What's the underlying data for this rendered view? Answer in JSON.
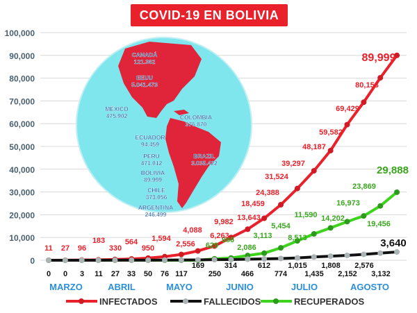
{
  "chart_data": {
    "type": "line",
    "title": "COVID-19  EN  BOLIVIA",
    "ylim": [
      0,
      100000
    ],
    "yticks": [
      "0",
      "10,000",
      "20,000",
      "30,000",
      "40,000",
      "50,000",
      "60,000",
      "70,000",
      "80,000",
      "90,000",
      "100,000"
    ],
    "months": [
      "MARZO",
      "ABRIL",
      "MAYO",
      "JUNIO",
      "JULIO",
      "AGOSTO"
    ],
    "series": [
      {
        "name": "INFECTADOS",
        "color": "#e8212b",
        "values": [
          11,
          27,
          96,
          183,
          330,
          564,
          950,
          1594,
          2556,
          4088,
          6263,
          9982,
          13643,
          18459,
          24388,
          31524,
          39297,
          48187,
          59582,
          69429,
          80153,
          89999
        ],
        "labels": [
          "11",
          "27",
          "96",
          "183",
          "330",
          "564",
          "950",
          "1,594",
          "2,556",
          "4,088",
          "6,263",
          "9,982",
          "13,643",
          "18,459",
          "24,388",
          "31,524",
          "39,297",
          "48,187",
          "59,582",
          "69,429",
          "80,153",
          "89,999"
        ]
      },
      {
        "name": "FALLECIDOS",
        "color": "#111111",
        "values": [
          0,
          0,
          3,
          11,
          27,
          33,
          50,
          76,
          117,
          169,
          250,
          314,
          466,
          612,
          774,
          1015,
          1435,
          1808,
          2152,
          2576,
          3132,
          3640
        ],
        "labels": [
          "0",
          "0",
          "3",
          "11",
          "27",
          "33",
          "50",
          "76",
          "117",
          "169",
          "250",
          "314",
          "466",
          "612",
          "774",
          "1,015",
          "1,435",
          "1,808",
          "2,152",
          "2,576",
          "3,132",
          "3,640"
        ]
      },
      {
        "name": "RECUPERADOS",
        "color": "#3fd21e",
        "values": [
          0,
          0,
          0,
          0,
          0,
          0,
          0,
          0,
          0,
          0,
          629,
          986,
          2086,
          3113,
          5454,
          8513,
          11590,
          14202,
          16973,
          19456,
          23869,
          29888
        ],
        "labels": [
          "",
          "",
          "",
          "",
          "",
          "",
          "",
          "",
          "",
          "",
          "629",
          "986",
          "2,086",
          "3,113",
          "5,454",
          "8,513",
          "11,590",
          "14,202",
          "16,973",
          "19,456",
          "23,869",
          "29,888"
        ]
      }
    ]
  },
  "globe": {
    "countries": [
      {
        "name": "CANADÁ",
        "value": "121.362"
      },
      {
        "name": "EEUU",
        "value": "5.041.473"
      },
      {
        "name": "MÉXICO",
        "value": "475.902"
      },
      {
        "name": "COLOMBIA",
        "value": "376.870"
      },
      {
        "name": "ECUADOR",
        "value": "94.459"
      },
      {
        "name": "PERU",
        "value": "471.012"
      },
      {
        "name": "BRAZIL",
        "value": "3.035.422"
      },
      {
        "name": "BOLIVIA",
        "value": "89.999"
      },
      {
        "name": "CHILE",
        "value": "373.056"
      },
      {
        "name": "ARGENTINA",
        "value": "246.499"
      }
    ]
  }
}
